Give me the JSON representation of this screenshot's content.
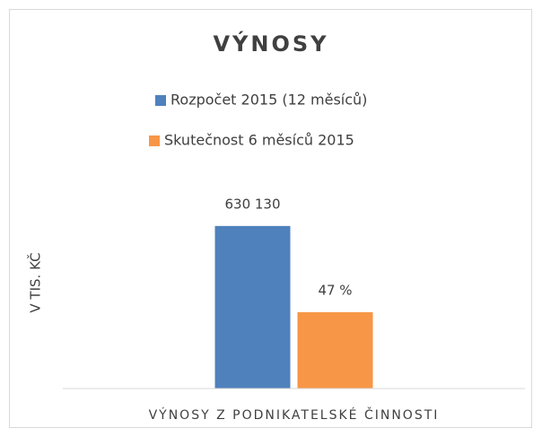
{
  "chart_data": {
    "type": "bar",
    "title": "VÝNOSY",
    "categories": [
      "VÝNOSY Z PODNIKATELSKÉ ČINNOSTI"
    ],
    "series": [
      {
        "name": "Rozpočet 2015 (12 měsíců)",
        "color": "#4f81bd",
        "values": [
          630130
        ],
        "value_labels": [
          "630 130"
        ]
      },
      {
        "name": "Skutečnost 6 měsíců 2015",
        "color": "#f79646",
        "values": [
          296161
        ],
        "value_labels": [
          "47 %"
        ]
      }
    ],
    "y_label": "V TIS. KČ",
    "ylim": [
      0,
      800000
    ],
    "grid": false,
    "legend": "top"
  }
}
